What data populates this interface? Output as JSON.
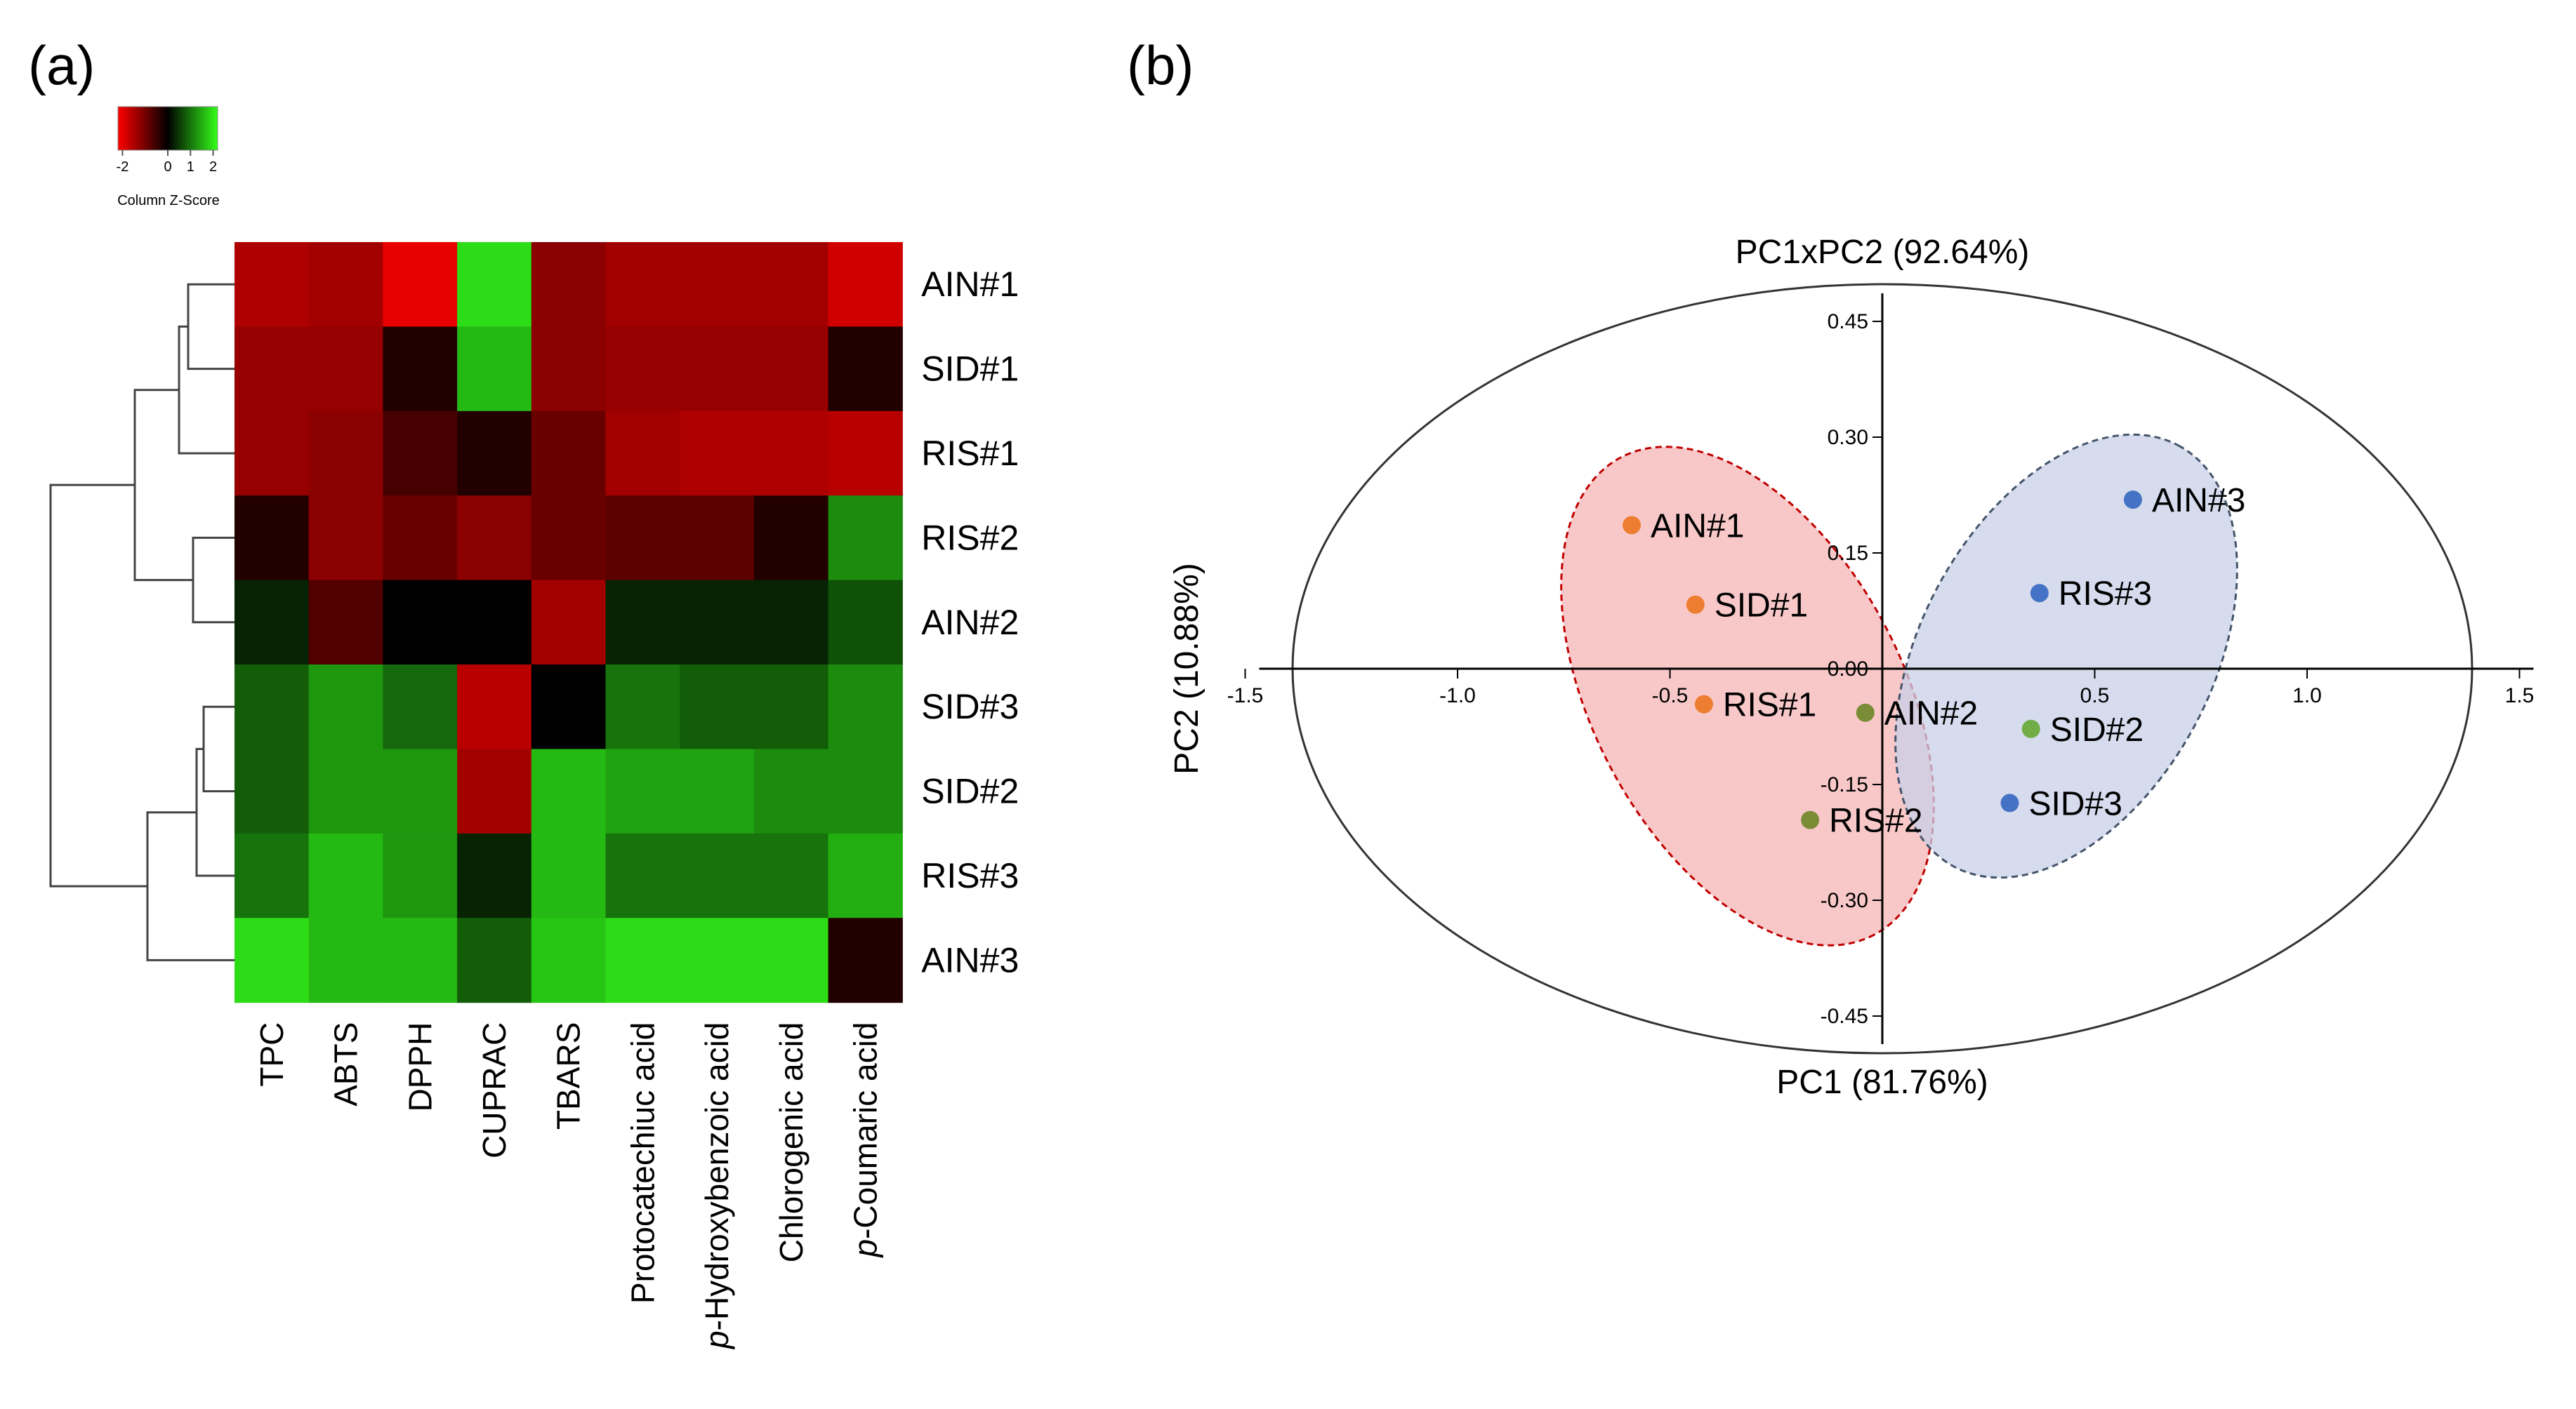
{
  "panels": {
    "a": "(a)",
    "b": "(b)"
  },
  "chart_data": [
    {
      "type": "heatmap",
      "title": "",
      "color_key": {
        "title": "Column Z-Score",
        "ticks": [
          "-2",
          "0",
          "1",
          "2"
        ],
        "low_color": "#ff0000",
        "mid_color": "#000000",
        "high_color": "#33ff1a",
        "range": [
          -2.2,
          2.2
        ]
      },
      "rows": [
        "AIN#1",
        "SID#1",
        "RIS#1",
        "RIS#2",
        "AIN#2",
        "SID#3",
        "SID#2",
        "RIS#3",
        "AIN#3"
      ],
      "columns": [
        {
          "pre": "",
          "italic": "",
          "post": "TPC"
        },
        {
          "pre": "",
          "italic": "",
          "post": "ABTS"
        },
        {
          "pre": "",
          "italic": "",
          "post": "DPPH"
        },
        {
          "pre": "",
          "italic": "",
          "post": "CUPRAC"
        },
        {
          "pre": "",
          "italic": "",
          "post": "TBARS"
        },
        {
          "pre": "",
          "italic": "",
          "post": "Protocatechiuc acid"
        },
        {
          "pre": "",
          "italic": "p",
          "post": "-Hydroxybenzoic acid"
        },
        {
          "pre": "",
          "italic": "",
          "post": "Chlorogenic acid"
        },
        {
          "pre": "",
          "italic": "p",
          "post": "-Coumaric acid"
        }
      ],
      "values": [
        [
          -1.5,
          -1.4,
          -2.0,
          1.9,
          -1.2,
          -1.4,
          -1.4,
          -1.4,
          -1.8
        ],
        [
          -1.3,
          -1.3,
          -0.3,
          1.6,
          -1.2,
          -1.3,
          -1.3,
          -1.3,
          -0.3
        ],
        [
          -1.3,
          -1.2,
          -0.6,
          -0.3,
          -0.9,
          -1.4,
          -1.5,
          -1.5,
          -1.6
        ],
        [
          -0.3,
          -1.2,
          -0.9,
          -1.2,
          -0.9,
          -0.8,
          -0.8,
          -0.3,
          1.2
        ],
        [
          0.3,
          -0.7,
          0.0,
          0.0,
          -1.4,
          0.3,
          0.3,
          0.3,
          0.7
        ],
        [
          0.8,
          1.3,
          0.9,
          -1.6,
          0.0,
          1.0,
          0.8,
          0.8,
          1.2
        ],
        [
          0.8,
          1.3,
          1.3,
          -1.4,
          1.6,
          1.4,
          1.4,
          1.2,
          1.2
        ],
        [
          1.0,
          1.6,
          1.3,
          0.3,
          1.6,
          1.0,
          1.0,
          1.0,
          1.5
        ],
        [
          1.9,
          1.6,
          1.6,
          0.8,
          1.7,
          1.9,
          1.9,
          1.9,
          -0.3
        ]
      ],
      "row_dendrogram": true
    },
    {
      "type": "scatter",
      "title": "PC1xPC2 (92.64%)",
      "xlabel": "PC1 (81.76%)",
      "ylabel": "PC2 (10.88%)",
      "xlim": [
        -1.5,
        1.5
      ],
      "ylim": [
        -0.45,
        0.45
      ],
      "xticks": [
        "-1.5",
        "-1.0",
        "-0.5",
        "0.5",
        "1.0",
        "1.5"
      ],
      "xtick_values": [
        -1.5,
        -1.0,
        -0.5,
        0.5,
        1.0,
        1.5
      ],
      "yticks": [
        "0.45",
        "0.30",
        "0.15",
        "0.00",
        "-0.15",
        "-0.30",
        "-0.45"
      ],
      "ytick_values": [
        0.45,
        0.3,
        0.15,
        0.0,
        -0.15,
        -0.3,
        -0.45
      ],
      "points": [
        {
          "label": "AIN#1",
          "x": -0.59,
          "y": 0.186,
          "color": "#ed7d31"
        },
        {
          "label": "SID#1",
          "x": -0.44,
          "y": 0.083,
          "color": "#ed7d31"
        },
        {
          "label": "RIS#1",
          "x": -0.42,
          "y": -0.046,
          "color": "#ed7d31"
        },
        {
          "label": "AIN#2",
          "x": -0.04,
          "y": -0.057,
          "color": "#7a8c36"
        },
        {
          "label": "RIS#2",
          "x": -0.17,
          "y": -0.196,
          "color": "#7a8c36"
        },
        {
          "label": "SID#2",
          "x": 0.35,
          "y": -0.078,
          "color": "#70ad47"
        },
        {
          "label": "AIN#3",
          "x": 0.59,
          "y": 0.219,
          "color": "#4472c4"
        },
        {
          "label": "RIS#3",
          "x": 0.37,
          "y": 0.098,
          "color": "#4472c4"
        },
        {
          "label": "SID#3",
          "x": 0.3,
          "y": -0.174,
          "color": "#4472c4"
        }
      ],
      "groups": [
        {
          "name": "red-group",
          "fill": "#f4a6a6",
          "stroke": "#c00000"
        },
        {
          "name": "blue-group",
          "fill": "#c8d0e8",
          "stroke": "#44546a"
        }
      ]
    }
  ]
}
